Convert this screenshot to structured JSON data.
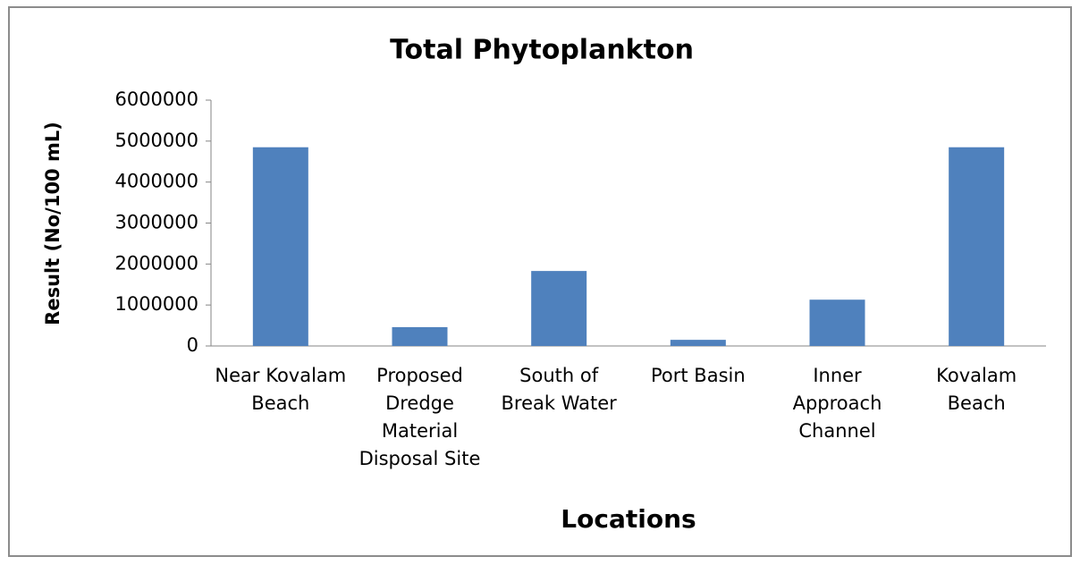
{
  "chart_data": {
    "type": "bar",
    "title": "Total Phytoplankton",
    "x_label": "Locations",
    "y_label": "Result (No/100 mL)",
    "categories": [
      "Near Kovalam Beach",
      "Proposed Dredge Material Disposal Site",
      "South of Break Water",
      "Port Basin",
      "Inner Approach Channel",
      "Kovalam Beach"
    ],
    "values": [
      4850000,
      460000,
      1830000,
      150000,
      1130000,
      4850000
    ],
    "color": "#4f81bd",
    "ylim": [
      0,
      6000000
    ],
    "yticks": [
      0,
      1000000,
      2000000,
      3000000,
      4000000,
      5000000,
      6000000
    ],
    "grid": false
  }
}
